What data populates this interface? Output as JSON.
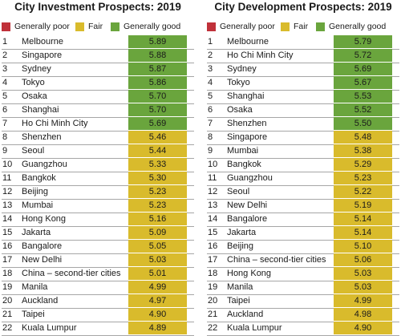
{
  "colors": {
    "good": "#6aa53d",
    "fair": "#d9bb2c",
    "poor": "#c0313a",
    "row_line": "#a6a6a6"
  },
  "chart_data": [
    {
      "type": "table",
      "title": "City Investment Prospects: 2019",
      "legend": [
        "Generally poor",
        "Fair",
        "Generally good"
      ],
      "rows": [
        {
          "rank": "1",
          "city": "Melbourne",
          "value": 5.89,
          "label": "5.89",
          "category": "good"
        },
        {
          "rank": "2",
          "city": "Singapore",
          "value": 5.88,
          "label": "5.88",
          "category": "good"
        },
        {
          "rank": "3",
          "city": "Sydney",
          "value": 5.87,
          "label": "5.87",
          "category": "good"
        },
        {
          "rank": "4",
          "city": "Tokyo",
          "value": 5.86,
          "label": "5.86",
          "category": "good"
        },
        {
          "rank": "5",
          "city": "Osaka",
          "value": 5.7,
          "label": "5.70",
          "category": "good"
        },
        {
          "rank": "6",
          "city": "Shanghai",
          "value": 5.7,
          "label": "5.70",
          "category": "good"
        },
        {
          "rank": "7",
          "city": "Ho Chi Minh City",
          "value": 5.69,
          "label": "5.69",
          "category": "good"
        },
        {
          "rank": "8",
          "city": "Shenzhen",
          "value": 5.46,
          "label": "5.46",
          "category": "fair"
        },
        {
          "rank": "9",
          "city": "Seoul",
          "value": 5.44,
          "label": "5.44",
          "category": "fair"
        },
        {
          "rank": "10",
          "city": "Guangzhou",
          "value": 5.33,
          "label": "5.33",
          "category": "fair"
        },
        {
          "rank": "11",
          "city": "Bangkok",
          "value": 5.3,
          "label": "5.30",
          "category": "fair"
        },
        {
          "rank": "12",
          "city": "Beijing",
          "value": 5.23,
          "label": "5.23",
          "category": "fair"
        },
        {
          "rank": "13",
          "city": "Mumbai",
          "value": 5.23,
          "label": "5.23",
          "category": "fair"
        },
        {
          "rank": "14",
          "city": "Hong Kong",
          "value": 5.16,
          "label": "5.16",
          "category": "fair"
        },
        {
          "rank": "15",
          "city": "Jakarta",
          "value": 5.09,
          "label": "5.09",
          "category": "fair"
        },
        {
          "rank": "16",
          "city": "Bangalore",
          "value": 5.05,
          "label": "5.05",
          "category": "fair"
        },
        {
          "rank": "17",
          "city": "New Delhi",
          "value": 5.03,
          "label": "5.03",
          "category": "fair"
        },
        {
          "rank": "18",
          "city": "China – second-tier cities",
          "value": 5.01,
          "label": "5.01",
          "category": "fair"
        },
        {
          "rank": "19",
          "city": "Manila",
          "value": 4.99,
          "label": "4.99",
          "category": "fair"
        },
        {
          "rank": "20",
          "city": "Auckland",
          "value": 4.97,
          "label": "4.97",
          "category": "fair"
        },
        {
          "rank": "21",
          "city": "Taipei",
          "value": 4.9,
          "label": "4.90",
          "category": "fair"
        },
        {
          "rank": "22",
          "city": "Kuala Lumpur",
          "value": 4.89,
          "label": "4.89",
          "category": "fair"
        }
      ]
    },
    {
      "type": "table",
      "title": "City Development Prospects: 2019",
      "legend": [
        "Generally poor",
        "Fair",
        "Generally good"
      ],
      "rows": [
        {
          "rank": "1",
          "city": "Melbourne",
          "value": 5.79,
          "label": "5.79",
          "category": "good"
        },
        {
          "rank": "2",
          "city": "Ho Chi Minh City",
          "value": 5.72,
          "label": "5.72",
          "category": "good"
        },
        {
          "rank": "3",
          "city": "Sydney",
          "value": 5.69,
          "label": "5.69",
          "category": "good"
        },
        {
          "rank": "4",
          "city": "Tokyo",
          "value": 5.67,
          "label": "5.67",
          "category": "good"
        },
        {
          "rank": "5",
          "city": "Shanghai",
          "value": 5.53,
          "label": "5.53",
          "category": "good"
        },
        {
          "rank": "6",
          "city": "Osaka",
          "value": 5.52,
          "label": "5.52",
          "category": "good"
        },
        {
          "rank": "7",
          "city": "Shenzhen",
          "value": 5.5,
          "label": "5.50",
          "category": "good"
        },
        {
          "rank": "8",
          "city": "Singapore",
          "value": 5.48,
          "label": "5.48",
          "category": "fair"
        },
        {
          "rank": "9",
          "city": "Mumbai",
          "value": 5.38,
          "label": "5.38",
          "category": "fair"
        },
        {
          "rank": "10",
          "city": "Bangkok",
          "value": 5.29,
          "label": "5.29",
          "category": "fair"
        },
        {
          "rank": "11",
          "city": "Guangzhou",
          "value": 5.23,
          "label": "5.23",
          "category": "fair"
        },
        {
          "rank": "12",
          "city": "Seoul",
          "value": 5.22,
          "label": "5.22",
          "category": "fair"
        },
        {
          "rank": "13",
          "city": "New Delhi",
          "value": 5.19,
          "label": "5.19",
          "category": "fair"
        },
        {
          "rank": "14",
          "city": "Bangalore",
          "value": 5.14,
          "label": "5.14",
          "category": "fair"
        },
        {
          "rank": "15",
          "city": "Jakarta",
          "value": 5.14,
          "label": "5.14",
          "category": "fair"
        },
        {
          "rank": "16",
          "city": "Beijing",
          "value": 5.1,
          "label": "5.10",
          "category": "fair"
        },
        {
          "rank": "17",
          "city": "China – second-tier cities",
          "value": 5.06,
          "label": "5.06",
          "category": "fair"
        },
        {
          "rank": "18",
          "city": "Hong Kong",
          "value": 5.03,
          "label": "5.03",
          "category": "fair"
        },
        {
          "rank": "19",
          "city": "Manila",
          "value": 5.03,
          "label": "5.03",
          "category": "fair"
        },
        {
          "rank": "20",
          "city": "Taipei",
          "value": 4.99,
          "label": "4.99",
          "category": "fair"
        },
        {
          "rank": "21",
          "city": "Auckland",
          "value": 4.98,
          "label": "4.98",
          "category": "fair"
        },
        {
          "rank": "22",
          "city": "Kuala Lumpur",
          "value": 4.9,
          "label": "4.90",
          "category": "fair"
        }
      ]
    }
  ]
}
